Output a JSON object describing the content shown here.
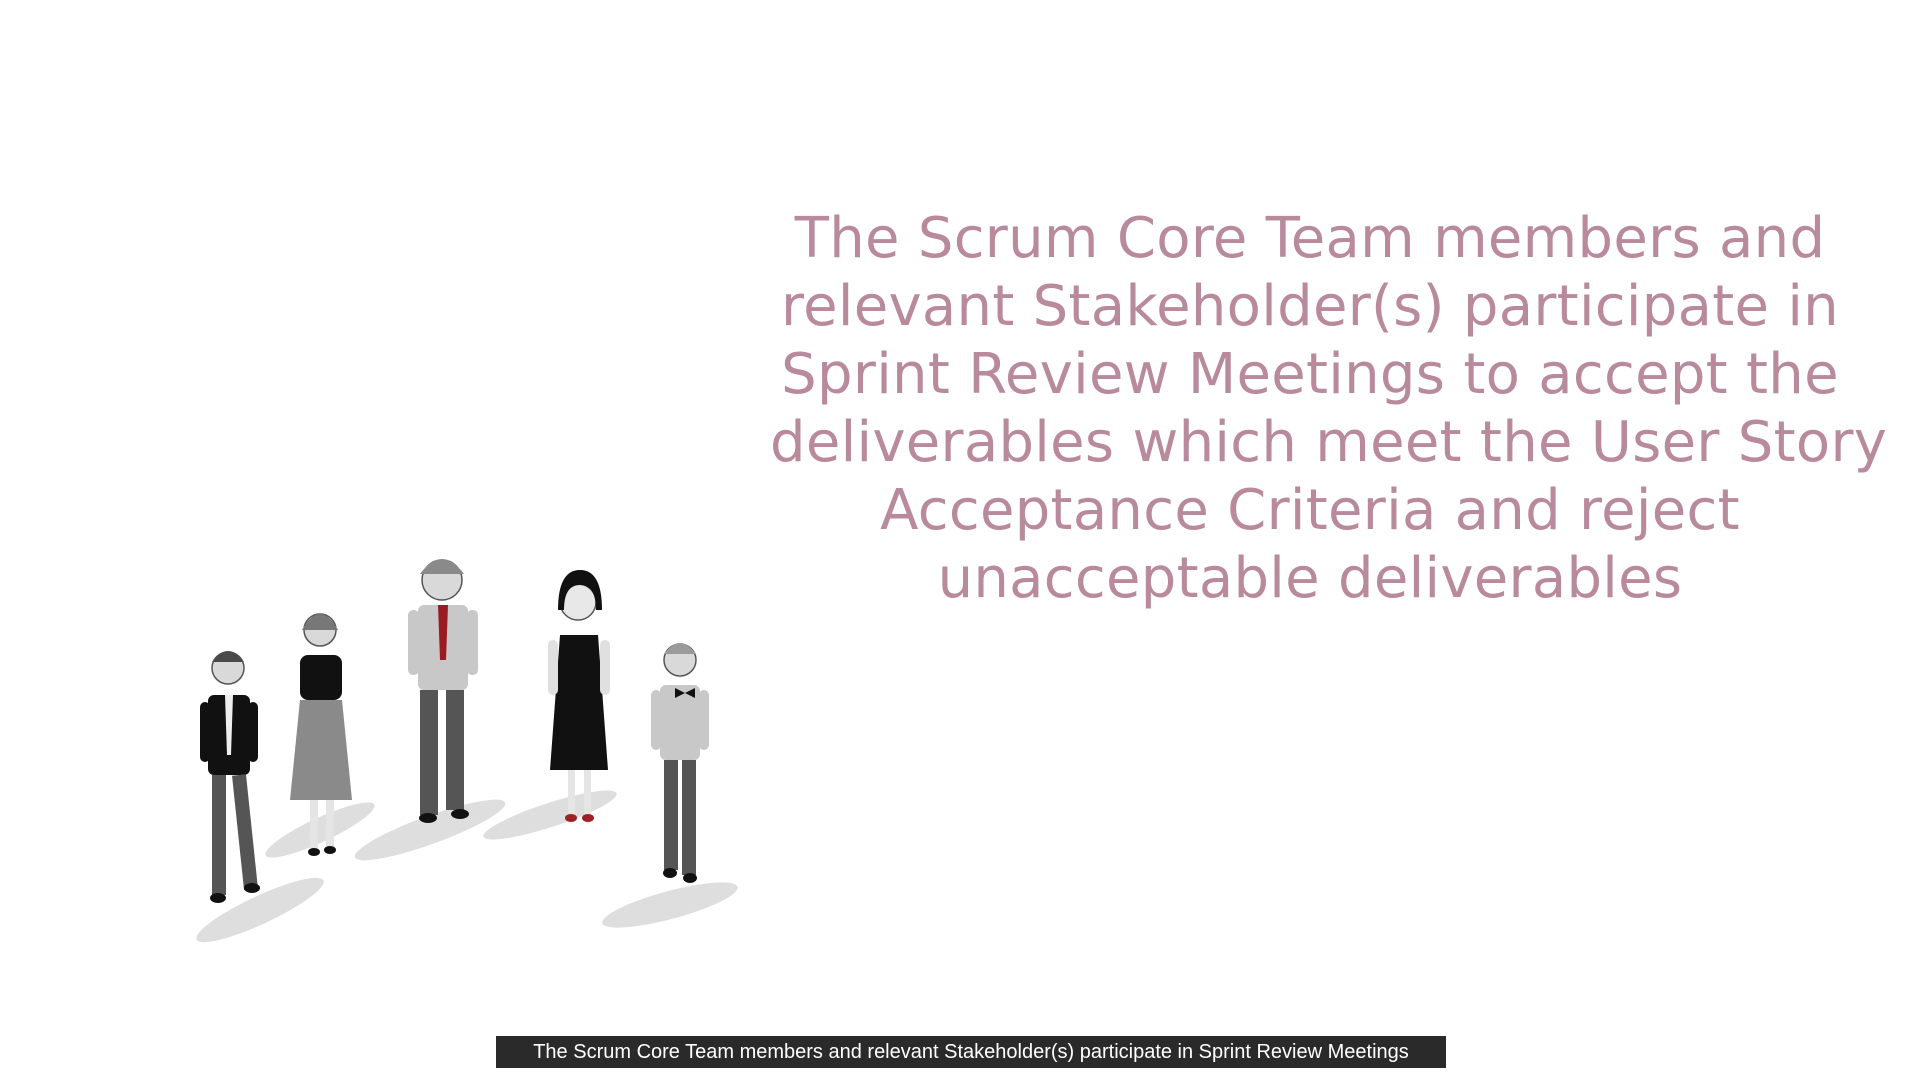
{
  "slide": {
    "headline_lines": [
      "The Scrum Core Team members and",
      "relevant Stakeholder(s) participate in",
      "Sprint Review Meetings to accept the",
      "deliverables which meet the User Story",
      "Acceptance Criteria and reject",
      "unacceptable deliverables"
    ],
    "headline_color": "#b88a9c",
    "illustration": "group-of-people-illustration"
  },
  "caption": {
    "text": "The Scrum Core Team members and relevant Stakeholder(s) participate in Sprint Review Meetings"
  }
}
